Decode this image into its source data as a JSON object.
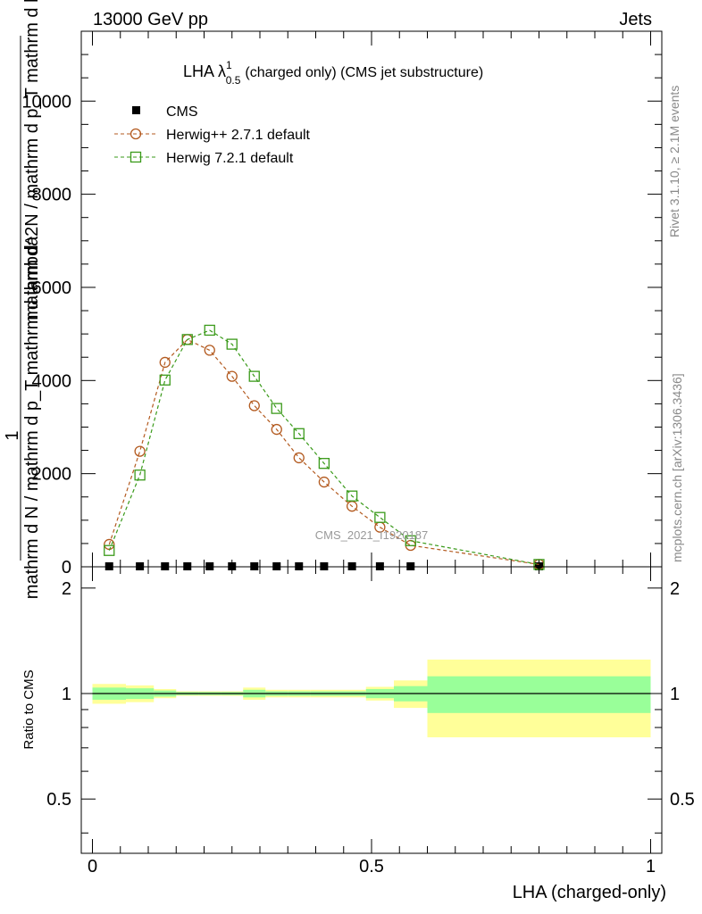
{
  "header": {
    "energy_label": "13000 GeV pp",
    "category_label": "Jets"
  },
  "side_labels": {
    "rivet": "Rivet 3.1.10, ≥ 2.1M events",
    "mcplots": "mcplots.cern.ch [arXiv:1306.3436]"
  },
  "watermark": "CMS_2021_I1920187",
  "chart_data": [
    {
      "type": "line",
      "title_main": "LHA λ",
      "title_sup": "1",
      "title_sub": "0.5",
      "title_rest": "(charged only) (CMS jet substructure)",
      "xlabel": "LHA (charged-only)",
      "ylabel_numerator": "1",
      "ylabel_denominator": "mathrm d N / mathrm d p_T mathrm d lambda",
      "ylabel_extra": "mathrm d^2N / mathrm d p_T mathrm d lambda",
      "xlim": [
        -0.02,
        1.02
      ],
      "ylim": [
        0,
        11500
      ],
      "y_ticks": [
        0,
        2000,
        4000,
        6000,
        8000,
        10000
      ],
      "y_tick_labels": [
        "0",
        "2000",
        "4000",
        "6000",
        "8000",
        "10000"
      ],
      "legend": [
        "CMS",
        "Herwig++ 2.7.1 default",
        "Herwig 7.2.1 default"
      ],
      "series": [
        {
          "name": "CMS",
          "color": "#000000",
          "x": [
            0.03,
            0.085,
            0.13,
            0.17,
            0.21,
            0.25,
            0.29,
            0.33,
            0.37,
            0.415,
            0.465,
            0.515,
            0.57,
            0.8
          ],
          "values": [
            10,
            10,
            10,
            10,
            10,
            10,
            10,
            10,
            10,
            10,
            10,
            10,
            10,
            10
          ]
        },
        {
          "name": "Herwig++ 2.7.1 default",
          "color": "#b35a1f",
          "x": [
            0.03,
            0.085,
            0.13,
            0.17,
            0.21,
            0.25,
            0.29,
            0.33,
            0.37,
            0.415,
            0.465,
            0.515,
            0.57,
            0.8
          ],
          "values": [
            480,
            2480,
            4390,
            4880,
            4650,
            4090,
            3460,
            2950,
            2340,
            1820,
            1300,
            850,
            460,
            50
          ]
        },
        {
          "name": "Herwig 7.2.1 default",
          "color": "#3a9a1a",
          "x": [
            0.03,
            0.085,
            0.13,
            0.17,
            0.21,
            0.25,
            0.29,
            0.33,
            0.37,
            0.415,
            0.465,
            0.515,
            0.57,
            0.8
          ],
          "values": [
            350,
            1970,
            4010,
            4880,
            5080,
            4780,
            4090,
            3400,
            2860,
            2220,
            1520,
            1060,
            560,
            50
          ]
        }
      ]
    },
    {
      "type": "area",
      "ylabel": "Ratio to CMS",
      "xlabel": "LHA (charged-only)",
      "xlim": [
        -0.02,
        1.02
      ],
      "ylim": [
        0.35,
        2.3
      ],
      "x_ticks": [
        0,
        0.5,
        1
      ],
      "x_tick_labels": [
        "0",
        "0.5",
        "1"
      ],
      "y_ticks": [
        0.5,
        1,
        2
      ],
      "y_tick_labels": [
        "0.5",
        "1",
        "2"
      ],
      "bin_edges": [
        0,
        0.06,
        0.11,
        0.15,
        0.19,
        0.23,
        0.27,
        0.31,
        0.35,
        0.39,
        0.44,
        0.49,
        0.54,
        0.6,
        1.0
      ],
      "band_inner": {
        "low": [
          0.96,
          0.965,
          0.98,
          0.99,
          0.99,
          0.99,
          0.975,
          0.985,
          0.985,
          0.985,
          0.985,
          0.97,
          0.95,
          0.88
        ],
        "high": [
          1.04,
          1.035,
          1.02,
          1.01,
          1.01,
          1.01,
          1.025,
          1.015,
          1.015,
          1.015,
          1.015,
          1.03,
          1.05,
          1.12
        ]
      },
      "band_outer": {
        "low": [
          0.935,
          0.945,
          0.97,
          0.985,
          0.985,
          0.985,
          0.96,
          0.975,
          0.975,
          0.975,
          0.975,
          0.955,
          0.91,
          0.75
        ],
        "high": [
          1.065,
          1.055,
          1.03,
          1.015,
          1.015,
          1.015,
          1.04,
          1.025,
          1.025,
          1.025,
          1.025,
          1.045,
          1.09,
          1.25
        ]
      },
      "colors": {
        "inner": "#99ff99",
        "outer": "#ffff99"
      }
    }
  ]
}
